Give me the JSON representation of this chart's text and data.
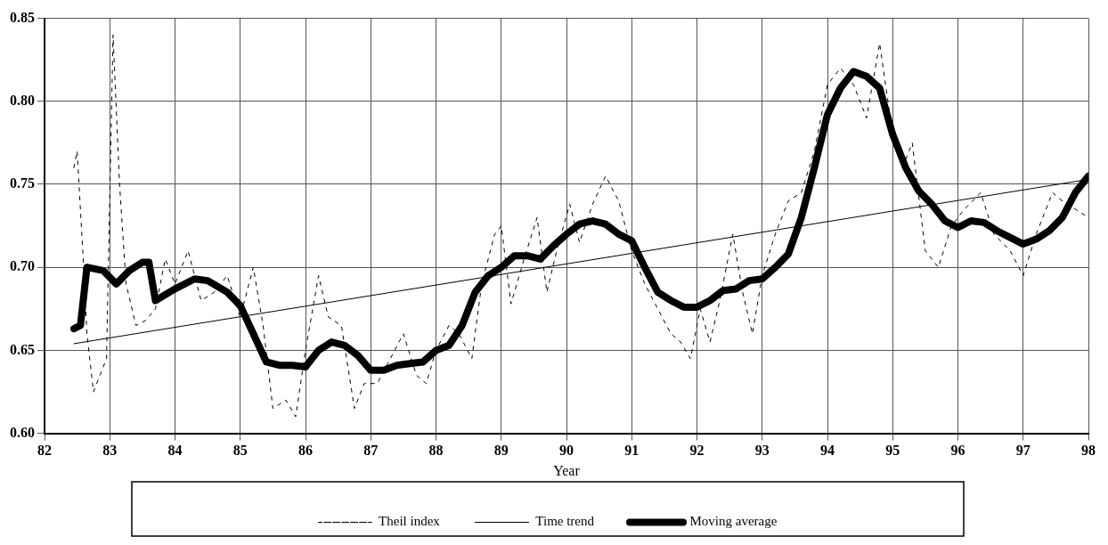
{
  "chart_data": {
    "type": "line",
    "xlabel": "Year",
    "xlim": [
      82,
      98
    ],
    "ylim": [
      0.6,
      0.85
    ],
    "xticks": [
      82,
      83,
      84,
      85,
      86,
      87,
      88,
      89,
      90,
      91,
      92,
      93,
      94,
      95,
      96,
      97,
      98
    ],
    "yticks": [
      {
        "value": 0.6,
        "label": "0.60"
      },
      0.65,
      {
        "value": 0.7,
        "label": "0.70"
      },
      0.75,
      {
        "value": 0.8,
        "label": "0.80"
      },
      0.85
    ],
    "grid": true,
    "legend": "bottom",
    "marker": "none",
    "series": [
      {
        "name": "Theil index",
        "color": "#000000",
        "line_style": "dashed",
        "x": [
          82.45,
          82.5,
          82.55,
          82.6,
          82.65,
          82.75,
          82.85,
          82.95,
          83.05,
          83.15,
          83.25,
          83.4,
          83.55,
          83.7,
          83.85,
          84.0,
          84.2,
          84.4,
          84.6,
          84.8,
          85.0,
          85.2,
          85.35,
          85.5,
          85.7,
          85.85,
          86.0,
          86.2,
          86.35,
          86.55,
          86.75,
          86.9,
          87.1,
          87.3,
          87.5,
          87.7,
          87.85,
          88.0,
          88.2,
          88.35,
          88.55,
          88.7,
          88.9,
          89.0,
          89.15,
          89.35,
          89.55,
          89.7,
          89.85,
          90.05,
          90.2,
          90.4,
          90.6,
          90.8,
          91.0,
          91.2,
          91.4,
          91.6,
          91.75,
          91.9,
          92.05,
          92.2,
          92.35,
          92.55,
          92.7,
          92.85,
          93.0,
          93.2,
          93.4,
          93.6,
          93.8,
          94.0,
          94.2,
          94.4,
          94.6,
          94.8,
          95.0,
          95.15,
          95.3,
          95.5,
          95.7,
          95.9,
          96.1,
          96.35,
          96.55,
          96.8,
          97.0,
          97.2,
          97.45,
          97.6,
          97.8,
          98.0
        ],
        "values": [
          0.76,
          0.77,
          0.735,
          0.7,
          0.66,
          0.625,
          0.635,
          0.645,
          0.84,
          0.75,
          0.69,
          0.665,
          0.668,
          0.675,
          0.705,
          0.69,
          0.71,
          0.68,
          0.685,
          0.695,
          0.67,
          0.7,
          0.665,
          0.615,
          0.62,
          0.61,
          0.65,
          0.695,
          0.67,
          0.665,
          0.615,
          0.63,
          0.63,
          0.645,
          0.66,
          0.635,
          0.63,
          0.65,
          0.665,
          0.66,
          0.645,
          0.69,
          0.72,
          0.725,
          0.678,
          0.705,
          0.73,
          0.685,
          0.71,
          0.738,
          0.715,
          0.738,
          0.755,
          0.74,
          0.71,
          0.69,
          0.675,
          0.66,
          0.655,
          0.645,
          0.675,
          0.655,
          0.68,
          0.72,
          0.685,
          0.66,
          0.695,
          0.72,
          0.74,
          0.745,
          0.77,
          0.81,
          0.82,
          0.81,
          0.79,
          0.835,
          0.78,
          0.76,
          0.775,
          0.71,
          0.7,
          0.725,
          0.735,
          0.745,
          0.72,
          0.71,
          0.695,
          0.72,
          0.745,
          0.74,
          0.735,
          0.73
        ]
      },
      {
        "name": "Time trend",
        "color": "#000000",
        "line_style": "solid",
        "x": [
          82.45,
          98
        ],
        "values": [
          0.654,
          0.753
        ]
      },
      {
        "name": "Moving average",
        "color": "#000000",
        "line_style": "solid",
        "x": [
          82.45,
          82.55,
          82.65,
          82.9,
          83.1,
          83.3,
          83.5,
          83.6,
          83.7,
          84.0,
          84.3,
          84.5,
          84.8,
          85.0,
          85.2,
          85.4,
          85.6,
          85.8,
          86.0,
          86.2,
          86.4,
          86.6,
          86.8,
          87.0,
          87.2,
          87.4,
          87.6,
          87.8,
          88.0,
          88.2,
          88.4,
          88.6,
          88.8,
          89.0,
          89.2,
          89.4,
          89.6,
          89.8,
          90.0,
          90.2,
          90.4,
          90.6,
          90.8,
          91.0,
          91.2,
          91.4,
          91.6,
          91.8,
          92.0,
          92.2,
          92.4,
          92.6,
          92.8,
          93.0,
          93.2,
          93.4,
          93.6,
          93.8,
          94.0,
          94.2,
          94.4,
          94.6,
          94.8,
          95.0,
          95.2,
          95.4,
          95.6,
          95.8,
          96.0,
          96.2,
          96.4,
          96.6,
          96.8,
          97.0,
          97.2,
          97.4,
          97.6,
          97.8,
          98.0
        ],
        "values": [
          0.663,
          0.665,
          0.7,
          0.698,
          0.69,
          0.698,
          0.703,
          0.703,
          0.68,
          0.687,
          0.693,
          0.692,
          0.685,
          0.677,
          0.66,
          0.643,
          0.641,
          0.641,
          0.64,
          0.65,
          0.655,
          0.653,
          0.647,
          0.638,
          0.638,
          0.641,
          0.642,
          0.643,
          0.65,
          0.653,
          0.665,
          0.685,
          0.695,
          0.7,
          0.707,
          0.707,
          0.705,
          0.713,
          0.72,
          0.726,
          0.728,
          0.726,
          0.72,
          0.716,
          0.7,
          0.685,
          0.68,
          0.676,
          0.676,
          0.68,
          0.686,
          0.687,
          0.692,
          0.693,
          0.7,
          0.708,
          0.73,
          0.76,
          0.792,
          0.808,
          0.818,
          0.815,
          0.808,
          0.78,
          0.76,
          0.746,
          0.738,
          0.728,
          0.724,
          0.728,
          0.727,
          0.722,
          0.718,
          0.714,
          0.717,
          0.722,
          0.73,
          0.745,
          0.755
        ]
      }
    ]
  }
}
